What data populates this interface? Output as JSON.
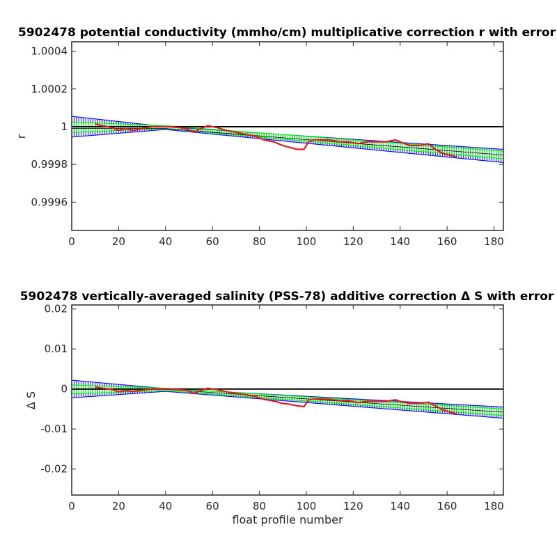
{
  "chart_data": [
    {
      "type": "line",
      "title": "5902478 potential conductivity (mmho/cm) multiplicative correction r with error",
      "xlabel": "",
      "ylabel": "r",
      "xlim": [
        0,
        184
      ],
      "ylim": [
        0.99945,
        1.00045
      ],
      "xticks": [
        0,
        20,
        40,
        60,
        80,
        100,
        120,
        140,
        160,
        180
      ],
      "xtick_labels": [
        "0",
        "20",
        "40",
        "60",
        "80",
        "100",
        "120",
        "140",
        "160",
        "180"
      ],
      "yticks": [
        0.9996,
        0.9998,
        1.0,
        1.0002,
        1.0004
      ],
      "ytick_labels": [
        "0.9996",
        "0.9998",
        "1",
        "1.0002",
        "1.0004"
      ],
      "grid": false,
      "reference_line": {
        "y": 1.0,
        "color": "#000000"
      },
      "series": [
        {
          "role": "fit_band_outer",
          "color": "#0000ff",
          "x": [
            0,
            40,
            184
          ],
          "upper": [
            1.000055,
            1.0,
            0.99988
          ],
          "lower": [
            0.999945,
            0.999985,
            0.99981
          ]
        },
        {
          "role": "fit_band_inner",
          "color": "#00ff00",
          "x": [
            0,
            40,
            184
          ],
          "upper": [
            1.000025,
            1.000005,
            0.99987
          ],
          "lower": [
            0.99997,
            0.99999,
            0.99983
          ]
        },
        {
          "role": "fit_center",
          "color": "#000000",
          "x": [
            0,
            40,
            184
          ],
          "y": [
            0.99999,
            0.99999,
            0.99985
          ]
        },
        {
          "role": "raw_correction",
          "color": "#e41a1c",
          "x": [
            10,
            13,
            17,
            20,
            23,
            26,
            30,
            34,
            38,
            42,
            46,
            49,
            52,
            55,
            58,
            62,
            66,
            70,
            74,
            78,
            82,
            86,
            90,
            93,
            96,
            99,
            101,
            103,
            106,
            110,
            114,
            118,
            122,
            126,
            130,
            134,
            138,
            140,
            144,
            148,
            152,
            155,
            158,
            161,
            164
          ],
          "y": [
            1.000015,
            1.000005,
            0.999995,
            0.99998,
            0.99999,
            0.99998,
            0.99999,
            1.0,
            1.0,
            1.0,
            0.999995,
            0.99999,
            0.99997,
            0.99999,
            1.000005,
            0.999995,
            0.99998,
            0.99997,
            0.99996,
            0.99995,
            0.99993,
            0.99992,
            0.9999,
            0.99989,
            0.99988,
            0.99988,
            0.99992,
            0.99993,
            0.99993,
            0.99993,
            0.99992,
            0.99992,
            0.99991,
            0.99992,
            0.99992,
            0.99992,
            0.99993,
            0.99992,
            0.9999,
            0.9999,
            0.99991,
            0.99988,
            0.99986,
            0.99985,
            0.99984
          ]
        }
      ]
    },
    {
      "type": "line",
      "title": "5902478 vertically-averaged salinity (PSS-78) additive correction Δ S with error",
      "xlabel": "float profile number",
      "ylabel": "Δ S",
      "xlim": [
        0,
        184
      ],
      "ylim": [
        -0.0265,
        0.021
      ],
      "xticks": [
        0,
        20,
        40,
        60,
        80,
        100,
        120,
        140,
        160,
        180
      ],
      "xtick_labels": [
        "0",
        "20",
        "40",
        "60",
        "80",
        "100",
        "120",
        "140",
        "160",
        "180"
      ],
      "yticks": [
        -0.02,
        -0.01,
        0,
        0.01,
        0.02
      ],
      "ytick_labels": [
        "-0.02",
        "-0.01",
        "0",
        "0.01",
        "0.02"
      ],
      "grid": false,
      "reference_line": {
        "y": 0,
        "color": "#000000"
      },
      "series": [
        {
          "role": "fit_band_outer",
          "color": "#0000ff",
          "x": [
            0,
            40,
            184
          ],
          "upper": [
            0.0022,
            0.0001,
            -0.0045
          ],
          "lower": [
            -0.0022,
            -0.0006,
            -0.0073
          ]
        },
        {
          "role": "fit_band_inner",
          "color": "#00ff00",
          "x": [
            0,
            40,
            184
          ],
          "upper": [
            0.001,
            0.0002,
            -0.005
          ],
          "lower": [
            -0.0012,
            -0.0004,
            -0.0066
          ]
        },
        {
          "role": "fit_center",
          "color": "#000000",
          "x": [
            0,
            40,
            184
          ],
          "y": [
            -0.0001,
            -0.0001,
            -0.0058
          ]
        },
        {
          "role": "raw_correction",
          "color": "#e41a1c",
          "x": [
            10,
            13,
            17,
            20,
            23,
            26,
            30,
            34,
            38,
            42,
            46,
            49,
            52,
            55,
            58,
            62,
            66,
            70,
            74,
            78,
            82,
            86,
            90,
            93,
            96,
            99,
            101,
            103,
            106,
            110,
            114,
            118,
            122,
            126,
            130,
            134,
            138,
            140,
            144,
            148,
            152,
            155,
            158,
            161,
            164
          ],
          "y": [
            0.0005,
            0.0002,
            -0.0001,
            -0.0007,
            -0.0004,
            -0.0006,
            -0.0003,
            0.0,
            0.0,
            0.0,
            -0.0002,
            -0.0003,
            -0.0011,
            -0.0004,
            0.0002,
            -0.0002,
            -0.0007,
            -0.0011,
            -0.0014,
            -0.0018,
            -0.0026,
            -0.003,
            -0.0036,
            -0.0038,
            -0.0042,
            -0.0044,
            -0.0027,
            -0.0025,
            -0.0025,
            -0.0026,
            -0.0029,
            -0.0029,
            -0.0034,
            -0.0031,
            -0.0031,
            -0.0031,
            -0.0027,
            -0.0031,
            -0.0036,
            -0.0036,
            -0.0033,
            -0.0042,
            -0.0052,
            -0.0057,
            -0.0062
          ]
        }
      ]
    }
  ]
}
